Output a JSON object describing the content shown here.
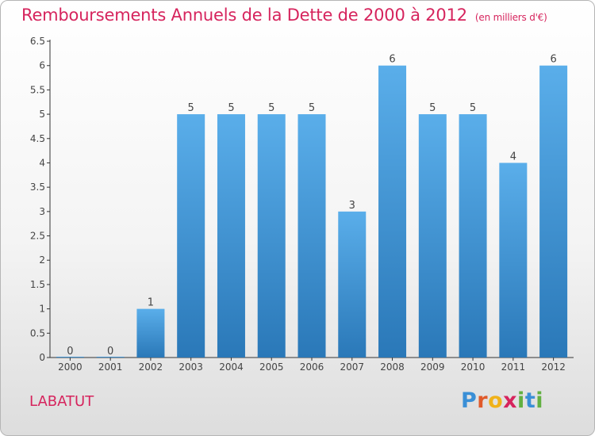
{
  "title": "Remboursements Annuels de la Dette de 2000 à 2012",
  "unit": "(en milliers d'€)",
  "commune": "LABATUT",
  "logo": {
    "text": "Proxiti",
    "letters": [
      {
        "char": "P",
        "color": "#3a8fd6"
      },
      {
        "char": "r",
        "color": "#e05a2a"
      },
      {
        "char": "o",
        "color": "#f0b21a"
      },
      {
        "char": "x",
        "color": "#d6245d"
      },
      {
        "char": "i",
        "color": "#62b041"
      },
      {
        "char": "t",
        "color": "#3a8fd6"
      },
      {
        "char": "i",
        "color": "#62b041"
      }
    ]
  },
  "colors": {
    "bar_light": "#5aaeea",
    "bar_dark": "#2a78b8",
    "title": "#d6245d"
  },
  "chart_data": {
    "type": "bar",
    "categories": [
      "2000",
      "2001",
      "2002",
      "2003",
      "2004",
      "2005",
      "2006",
      "2007",
      "2008",
      "2009",
      "2010",
      "2011",
      "2012"
    ],
    "values": [
      0,
      0,
      1,
      5,
      5,
      5,
      5,
      3,
      6,
      5,
      5,
      4,
      6
    ],
    "value_labels": [
      "0",
      "0",
      "1",
      "5",
      "5",
      "5",
      "5",
      "3",
      "6",
      "5",
      "5",
      "4",
      "6"
    ],
    "title": "Remboursements Annuels de la Dette de 2000 à 2012",
    "xlabel": "",
    "ylabel": "",
    "ylim": [
      0,
      6.5
    ],
    "yticks": [
      0,
      0.5,
      1,
      1.5,
      2,
      2.5,
      3,
      3.5,
      4,
      4.5,
      5,
      5.5,
      6,
      6.5
    ],
    "ytick_labels": [
      "0",
      "0.5",
      "1",
      "1.5",
      "2",
      "2.5",
      "3",
      "3.5",
      "4",
      "4.5",
      "5",
      "5.5",
      "6",
      "6.5"
    ],
    "grid": false,
    "legend": "none"
  }
}
